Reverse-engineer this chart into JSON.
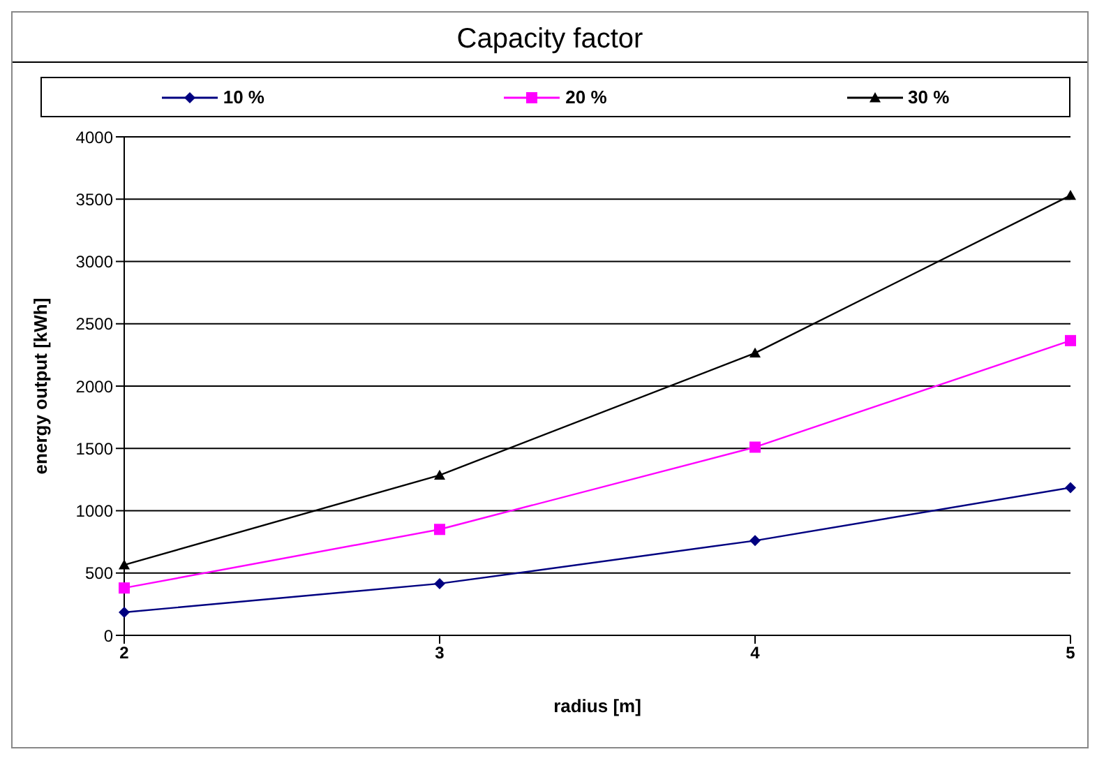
{
  "chart_data": {
    "type": "line",
    "title": "Capacity factor",
    "xlabel": "radius [m]",
    "ylabel": "energy output [kWh]",
    "categories": [
      "2",
      "3",
      "4",
      "5"
    ],
    "series": [
      {
        "name": "10 %",
        "color": "#000080",
        "marker": "diamond",
        "values": [
          185,
          415,
          760,
          1185
        ]
      },
      {
        "name": "20 %",
        "color": "#ff00ff",
        "marker": "square",
        "values": [
          380,
          850,
          1510,
          2365
        ]
      },
      {
        "name": "30 %",
        "color": "#000000",
        "marker": "triangle",
        "values": [
          565,
          1285,
          2265,
          3530
        ]
      }
    ],
    "ylim": [
      0,
      4000
    ],
    "yticks": [
      0,
      500,
      1000,
      1500,
      2000,
      2500,
      3000,
      3500,
      4000
    ],
    "grid": "y",
    "legend": "top"
  }
}
